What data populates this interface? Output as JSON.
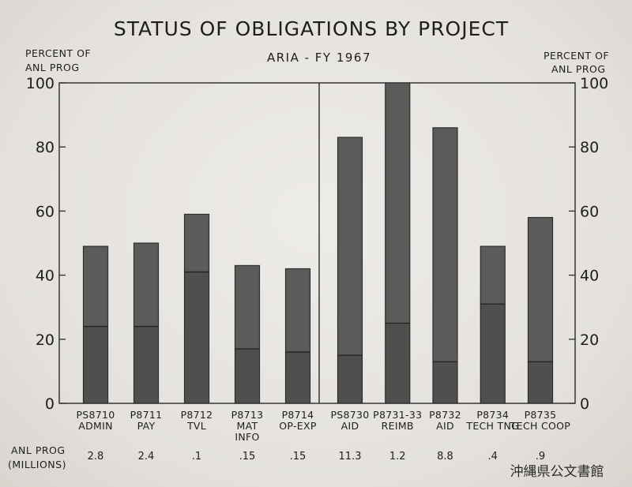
{
  "chart_data": {
    "type": "bar",
    "title": "STATUS OF OBLIGATIONS BY PROJECT",
    "subtitle": "ARIA - FY 1967",
    "ylabel_left": [
      "PERCENT OF",
      "ANL PROG"
    ],
    "ylabel_right": [
      "PERCENT OF",
      "ANL PROG"
    ],
    "ylim": [
      0,
      100
    ],
    "yticks": [
      "0",
      "20",
      "40",
      "60",
      "80",
      "100"
    ],
    "categories": [
      [
        "PS8710",
        "ADMIN"
      ],
      [
        "P8711",
        "PAY"
      ],
      [
        "P8712",
        "TVL"
      ],
      [
        "P8713",
        "MAT",
        "INFO"
      ],
      [
        "P8714",
        "OP-EXP"
      ],
      [
        "PS8730",
        "AID"
      ],
      [
        "P8731-33",
        "REIMB"
      ],
      [
        "P8732",
        "AID"
      ],
      [
        "P8734",
        "TECH TNG"
      ],
      [
        "P8735",
        "TECH COOP"
      ]
    ],
    "values": [
      49,
      50,
      59,
      43,
      42,
      83,
      100,
      86,
      49,
      58
    ],
    "inner_marks": [
      24,
      24,
      41,
      17,
      16,
      15,
      25,
      13,
      31,
      13
    ],
    "divider_after_index": 4,
    "grid": false,
    "bar_color": "#5b5b5b",
    "row_label": [
      "ANL PROG",
      "(MILLIONS)"
    ],
    "anl_prog": [
      "2.8",
      "2.4",
      ".1",
      ".15",
      ".15",
      "11.3",
      "1.2",
      "8.8",
      ".4",
      ".9"
    ]
  },
  "watermark": "沖縄県公文書館"
}
